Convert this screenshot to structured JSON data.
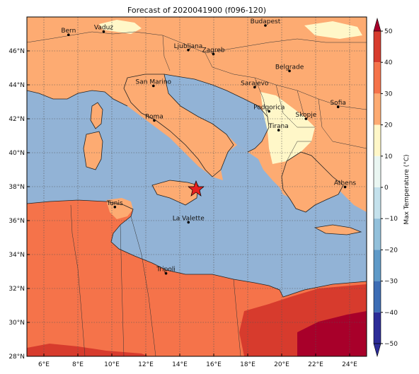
{
  "title": "Forecast of 2020041900 (f096-120)",
  "colorbar": {
    "label": "Max Temperature (°C)",
    "ticks": [
      "50",
      "40",
      "30",
      "20",
      "10",
      "0",
      "−10",
      "−20",
      "−30",
      "−40",
      "−50"
    ],
    "colors": {
      "lt_-40": "#2c2c98",
      "-40_-30": "#3d6db5",
      "-30_-20": "#5f9ac8",
      "-20_-10": "#92c0db",
      "-10_0": "#c4e1ec",
      "0_10": "#eaf6f2",
      "10_20": "#fff7c8",
      "20_30": "#fdab72",
      "30_40": "#f5734a",
      "40_50": "#d73b2d",
      "gt_50": "#a8002a"
    }
  },
  "map": {
    "lon_range": [
      5,
      25
    ],
    "lat_range": [
      28,
      48
    ],
    "x_ticks": [
      "6°E",
      "8°E",
      "10°E",
      "12°E",
      "14°E",
      "16°E",
      "18°E",
      "20°E",
      "22°E",
      "24°E"
    ],
    "y_ticks": [
      "28°N",
      "30°N",
      "32°N",
      "34°N",
      "36°N",
      "38°N",
      "40°N",
      "42°N",
      "44°N",
      "46°N"
    ],
    "grid": true,
    "cities": [
      {
        "name": "Bern"
      },
      {
        "name": "Vaduz"
      },
      {
        "name": "Budapest"
      },
      {
        "name": "Ljubljana"
      },
      {
        "name": "Zagreb"
      },
      {
        "name": "Belgrade"
      },
      {
        "name": "San Marino"
      },
      {
        "name": "Sarajevo"
      },
      {
        "name": "Sofia"
      },
      {
        "name": "Podgorica"
      },
      {
        "name": "Skopje"
      },
      {
        "name": "Roma"
      },
      {
        "name": "Tirana"
      },
      {
        "name": "Athens"
      },
      {
        "name": "Tunis"
      },
      {
        "name": "La Valette"
      },
      {
        "name": "Tripoli"
      }
    ],
    "marker": {
      "type": "star",
      "color": "#e8201f"
    }
  }
}
